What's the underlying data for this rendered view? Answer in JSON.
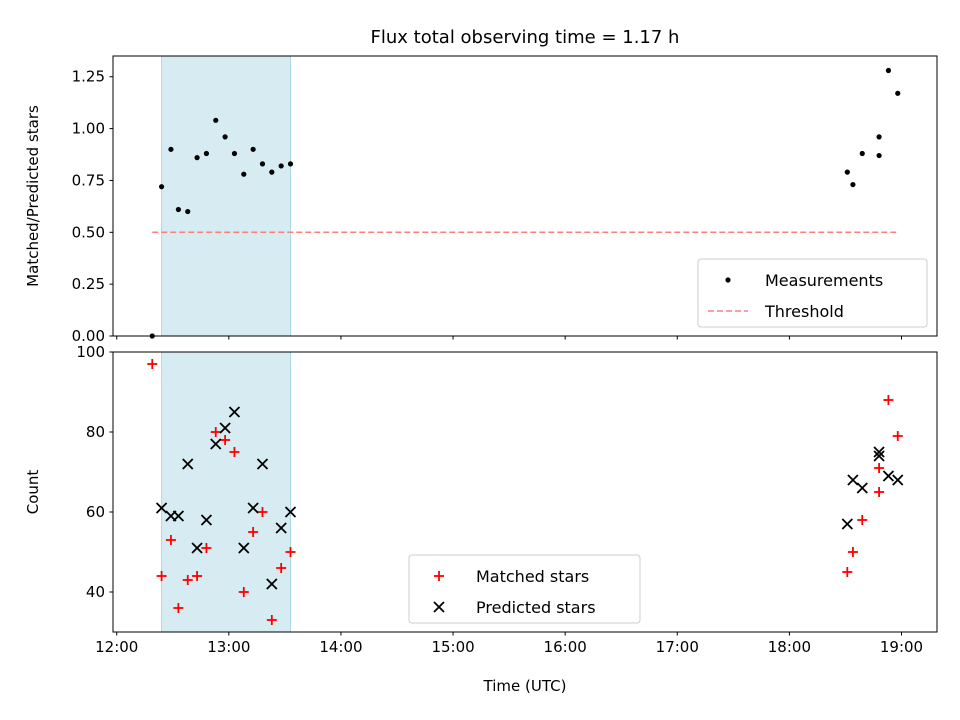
{
  "chart_data": [
    {
      "type": "scatter",
      "title": "Flux total observing time = 1.17 h",
      "xlabel": "",
      "ylabel": "Matched/Predicted stars",
      "xlim": [
        "11:58",
        "19:19"
      ],
      "ylim": [
        0,
        1.35
      ],
      "x_ticks": [
        "12:00",
        "13:00",
        "14:00",
        "15:00",
        "16:00",
        "17:00",
        "18:00",
        "19:00"
      ],
      "y_ticks": [
        "0.00",
        "0.25",
        "0.50",
        "0.75",
        "1.00",
        "1.25"
      ],
      "grid": false,
      "legend": "lower-right",
      "shaded_span": {
        "from": "12:24",
        "to": "13:33",
        "color": "#add8e6"
      },
      "series": [
        {
          "name": "Measurements",
          "marker": "dot",
          "color": "#000000",
          "points": [
            [
              "12:19",
              0.0
            ],
            [
              "12:24",
              0.72
            ],
            [
              "12:29",
              0.9
            ],
            [
              "12:33",
              0.61
            ],
            [
              "12:38",
              0.6
            ],
            [
              "12:43",
              0.86
            ],
            [
              "12:48",
              0.88
            ],
            [
              "12:53",
              1.04
            ],
            [
              "12:58",
              0.96
            ],
            [
              "13:03",
              0.88
            ],
            [
              "13:08",
              0.78
            ],
            [
              "13:13",
              0.9
            ],
            [
              "13:18",
              0.83
            ],
            [
              "13:23",
              0.79
            ],
            [
              "13:28",
              0.82
            ],
            [
              "13:33",
              0.83
            ],
            [
              "18:31",
              0.79
            ],
            [
              "18:34",
              0.73
            ],
            [
              "18:39",
              0.88
            ],
            [
              "18:48",
              0.87
            ],
            [
              "18:48",
              0.96
            ],
            [
              "18:53",
              1.28
            ],
            [
              "18:58",
              1.17
            ]
          ]
        },
        {
          "name": "Threshold",
          "type": "line",
          "dashed": true,
          "color": "#ff7f7f",
          "points": [
            [
              "12:19",
              0.5
            ],
            [
              "18:58",
              0.5
            ]
          ]
        }
      ]
    },
    {
      "type": "scatter",
      "xlabel": "Time (UTC)",
      "ylabel": "Count",
      "xlim": [
        "11:58",
        "19:19"
      ],
      "ylim": [
        30,
        100
      ],
      "x_ticks": [
        "12:00",
        "13:00",
        "14:00",
        "15:00",
        "16:00",
        "17:00",
        "18:00",
        "19:00"
      ],
      "y_ticks": [
        "40",
        "60",
        "80",
        "100"
      ],
      "grid": false,
      "legend": "lower-center",
      "shaded_span": {
        "from": "12:24",
        "to": "13:33",
        "color": "#add8e6"
      },
      "series": [
        {
          "name": "Matched stars",
          "marker": "plus",
          "color": "#ff0000",
          "points": [
            [
              "12:19",
              97
            ],
            [
              "12:24",
              44
            ],
            [
              "12:29",
              53
            ],
            [
              "12:33",
              36
            ],
            [
              "12:38",
              43
            ],
            [
              "12:43",
              44
            ],
            [
              "12:48",
              51
            ],
            [
              "12:53",
              80
            ],
            [
              "12:58",
              78
            ],
            [
              "13:03",
              75
            ],
            [
              "13:08",
              40
            ],
            [
              "13:13",
              55
            ],
            [
              "13:18",
              60
            ],
            [
              "13:23",
              33
            ],
            [
              "13:28",
              46
            ],
            [
              "13:33",
              50
            ],
            [
              "18:31",
              45
            ],
            [
              "18:34",
              50
            ],
            [
              "18:39",
              58
            ],
            [
              "18:48",
              65
            ],
            [
              "18:48",
              71
            ],
            [
              "18:53",
              88
            ],
            [
              "18:58",
              79
            ]
          ]
        },
        {
          "name": "Predicted stars",
          "marker": "x",
          "color": "#000000",
          "points": [
            [
              "12:24",
              61
            ],
            [
              "12:29",
              59
            ],
            [
              "12:33",
              59
            ],
            [
              "12:38",
              72
            ],
            [
              "12:43",
              51
            ],
            [
              "12:48",
              58
            ],
            [
              "12:53",
              77
            ],
            [
              "12:58",
              81
            ],
            [
              "13:03",
              85
            ],
            [
              "13:08",
              51
            ],
            [
              "13:13",
              61
            ],
            [
              "13:18",
              72
            ],
            [
              "13:23",
              42
            ],
            [
              "13:28",
              56
            ],
            [
              "13:33",
              60
            ],
            [
              "18:31",
              57
            ],
            [
              "18:34",
              68
            ],
            [
              "18:39",
              66
            ],
            [
              "18:48",
              74
            ],
            [
              "18:48",
              75
            ],
            [
              "18:53",
              69
            ],
            [
              "18:58",
              68
            ]
          ]
        }
      ]
    }
  ]
}
